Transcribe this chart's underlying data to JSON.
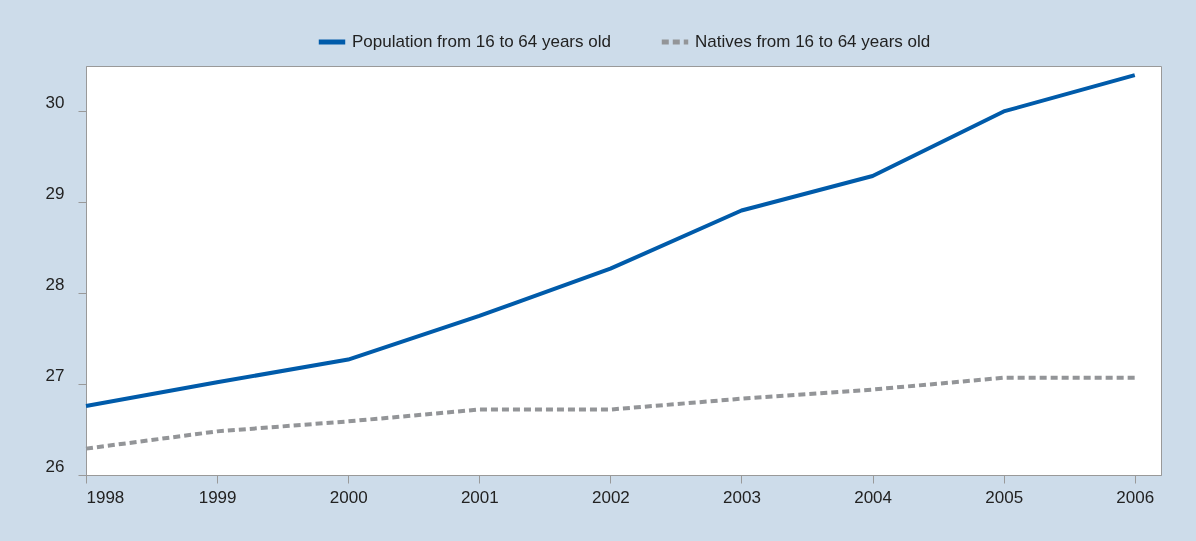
{
  "chart_data": {
    "type": "line",
    "x": [
      1998,
      1999,
      2000,
      2001,
      2002,
      2003,
      2004,
      2005,
      2006
    ],
    "series": [
      {
        "name": "Population from 16 to 64 years old",
        "color": "#005baa",
        "line_style": "solid",
        "values": [
          26.76,
          27.02,
          27.27,
          27.75,
          28.27,
          28.91,
          29.29,
          30.0,
          30.4
        ]
      },
      {
        "name": "Natives from 16 to 64 years old",
        "color": "#939598",
        "line_style": "dashed",
        "values": [
          26.29,
          26.48,
          26.59,
          26.72,
          26.72,
          26.84,
          26.94,
          27.07,
          27.07
        ]
      }
    ],
    "xlim": [
      1998,
      2006.2
    ],
    "xticks": [
      1998,
      1999,
      2000,
      2001,
      2002,
      2003,
      2004,
      2005,
      2006
    ],
    "ylim": [
      26,
      30.5
    ],
    "yticks": [
      26,
      27,
      28,
      29,
      30
    ],
    "grid": false,
    "legend": "top",
    "marker": "none"
  }
}
